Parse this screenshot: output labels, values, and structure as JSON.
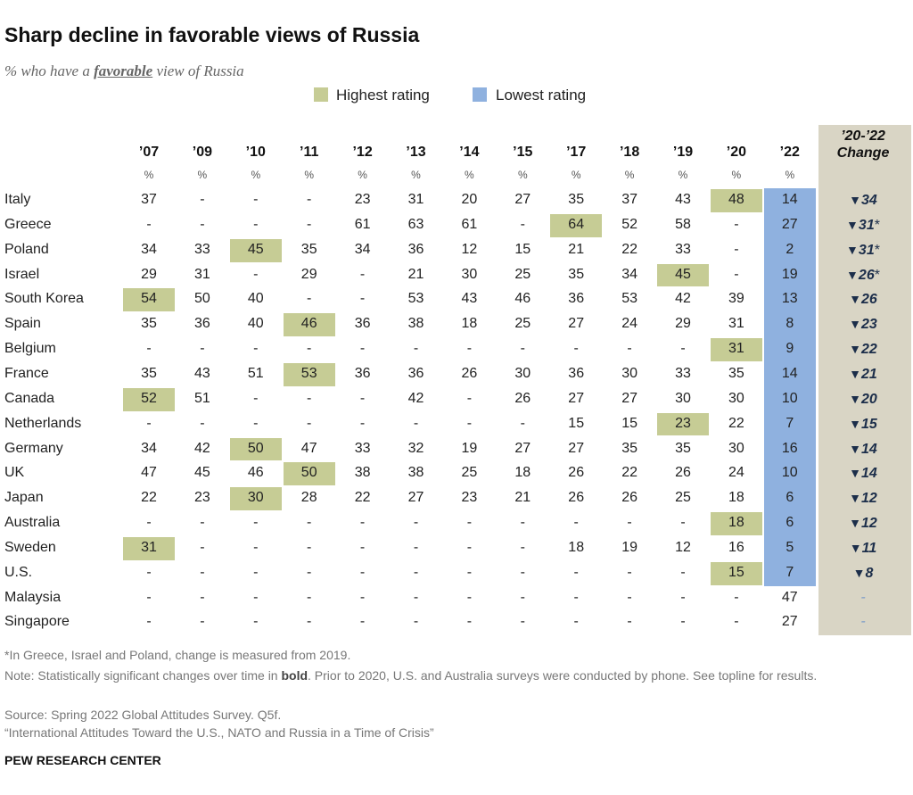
{
  "header": {
    "title": "Sharp decline in favorable views of Russia",
    "subtitle": [
      "% who have a ",
      "favorable",
      " view of Russia"
    ]
  },
  "legend": {
    "highest": "Highest rating",
    "lowest": "Lowest rating",
    "highest_color": "#c6cc95",
    "lowest_color": "#8fb1df"
  },
  "table": {
    "columns": [
      "’07",
      "’09",
      "’10",
      "’11",
      "’12",
      "’13",
      "’14",
      "’15",
      "’17",
      "’18",
      "’19",
      "’20",
      "’22"
    ],
    "unit": "%",
    "change_header": [
      "’20-’22",
      "Change"
    ],
    "rows": [
      {
        "country": "Italy",
        "values": [
          37,
          "-",
          "-",
          "-",
          23,
          31,
          20,
          27,
          35,
          37,
          43,
          48,
          14
        ],
        "highest": 11,
        "lowest": 12,
        "change": 34
      },
      {
        "country": "Greece",
        "values": [
          "-",
          "-",
          "-",
          "-",
          61,
          63,
          61,
          "-",
          64,
          52,
          58,
          "-",
          27
        ],
        "highest": 8,
        "lowest": 12,
        "change": 31,
        "note": "*"
      },
      {
        "country": "Poland",
        "values": [
          34,
          33,
          45,
          35,
          34,
          36,
          12,
          15,
          21,
          22,
          33,
          "-",
          2
        ],
        "highest": 2,
        "lowest": 12,
        "change": 31,
        "note": "*"
      },
      {
        "country": "Israel",
        "values": [
          29,
          31,
          "-",
          29,
          "-",
          21,
          30,
          25,
          35,
          34,
          45,
          "-",
          19
        ],
        "highest": 10,
        "lowest": 12,
        "change": 26,
        "note": "*"
      },
      {
        "country": "South Korea",
        "values": [
          54,
          50,
          40,
          "-",
          "-",
          53,
          43,
          46,
          36,
          53,
          42,
          39,
          13
        ],
        "highest": 0,
        "lowest": 12,
        "change": 26
      },
      {
        "country": "Spain",
        "values": [
          35,
          36,
          40,
          46,
          36,
          38,
          18,
          25,
          27,
          24,
          29,
          31,
          8
        ],
        "highest": 3,
        "lowest": 12,
        "change": 23
      },
      {
        "country": "Belgium",
        "values": [
          "-",
          "-",
          "-",
          "-",
          "-",
          "-",
          "-",
          "-",
          "-",
          "-",
          "-",
          31,
          9
        ],
        "highest": 11,
        "lowest": 12,
        "change": 22
      },
      {
        "country": "France",
        "values": [
          35,
          43,
          51,
          53,
          36,
          36,
          26,
          30,
          36,
          30,
          33,
          35,
          14
        ],
        "highest": 3,
        "lowest": 12,
        "change": 21
      },
      {
        "country": "Canada",
        "values": [
          52,
          51,
          "-",
          "-",
          "-",
          42,
          "-",
          26,
          27,
          27,
          30,
          30,
          10
        ],
        "highest": 0,
        "lowest": 12,
        "change": 20
      },
      {
        "country": "Netherlands",
        "values": [
          "-",
          "-",
          "-",
          "-",
          "-",
          "-",
          "-",
          "-",
          15,
          15,
          23,
          22,
          7
        ],
        "highest": 10,
        "lowest": 12,
        "change": 15
      },
      {
        "country": "Germany",
        "values": [
          34,
          42,
          50,
          47,
          33,
          32,
          19,
          27,
          27,
          35,
          35,
          30,
          16
        ],
        "highest": 2,
        "lowest": 12,
        "change": 14
      },
      {
        "country": "UK",
        "values": [
          47,
          45,
          46,
          50,
          38,
          38,
          25,
          18,
          26,
          22,
          26,
          24,
          10
        ],
        "highest": 3,
        "lowest": 12,
        "change": 14
      },
      {
        "country": "Japan",
        "values": [
          22,
          23,
          30,
          28,
          22,
          27,
          23,
          21,
          26,
          26,
          25,
          18,
          6
        ],
        "highest": 2,
        "lowest": 12,
        "change": 12
      },
      {
        "country": "Australia",
        "values": [
          "-",
          "-",
          "-",
          "-",
          "-",
          "-",
          "-",
          "-",
          "-",
          "-",
          "-",
          18,
          6
        ],
        "highest": 11,
        "lowest": 12,
        "change": 12
      },
      {
        "country": "Sweden",
        "values": [
          31,
          "-",
          "-",
          "-",
          "-",
          "-",
          "-",
          "-",
          18,
          19,
          12,
          16,
          5
        ],
        "highest": 0,
        "lowest": 12,
        "change": 11
      },
      {
        "country": "U.S.",
        "values": [
          "-",
          "-",
          "-",
          "-",
          "-",
          "-",
          "-",
          "-",
          "-",
          "-",
          "-",
          15,
          7
        ],
        "highest": 11,
        "lowest": 12,
        "change": 8
      },
      {
        "country": "Malaysia",
        "values": [
          "-",
          "-",
          "-",
          "-",
          "-",
          "-",
          "-",
          "-",
          "-",
          "-",
          "-",
          "-",
          47
        ],
        "change": "-"
      },
      {
        "country": "Singapore",
        "values": [
          "-",
          "-",
          "-",
          "-",
          "-",
          "-",
          "-",
          "-",
          "-",
          "-",
          "-",
          "-",
          27
        ],
        "change": "-"
      }
    ]
  },
  "footer": {
    "asterisk": "*In Greece, Israel and Poland, change is measured from 2019.",
    "note": [
      "Note: Statistically significant changes over time in ",
      "bold",
      ". Prior to 2020, U.S. and Australia surveys were conducted by phone. See topline for results."
    ],
    "source": "Source: Spring 2022 Global Attitudes Survey. Q5f.",
    "report": "“International Attitudes Toward the U.S., NATO and Russia in a Time of Crisis”",
    "org": "PEW RESEARCH CENTER"
  }
}
